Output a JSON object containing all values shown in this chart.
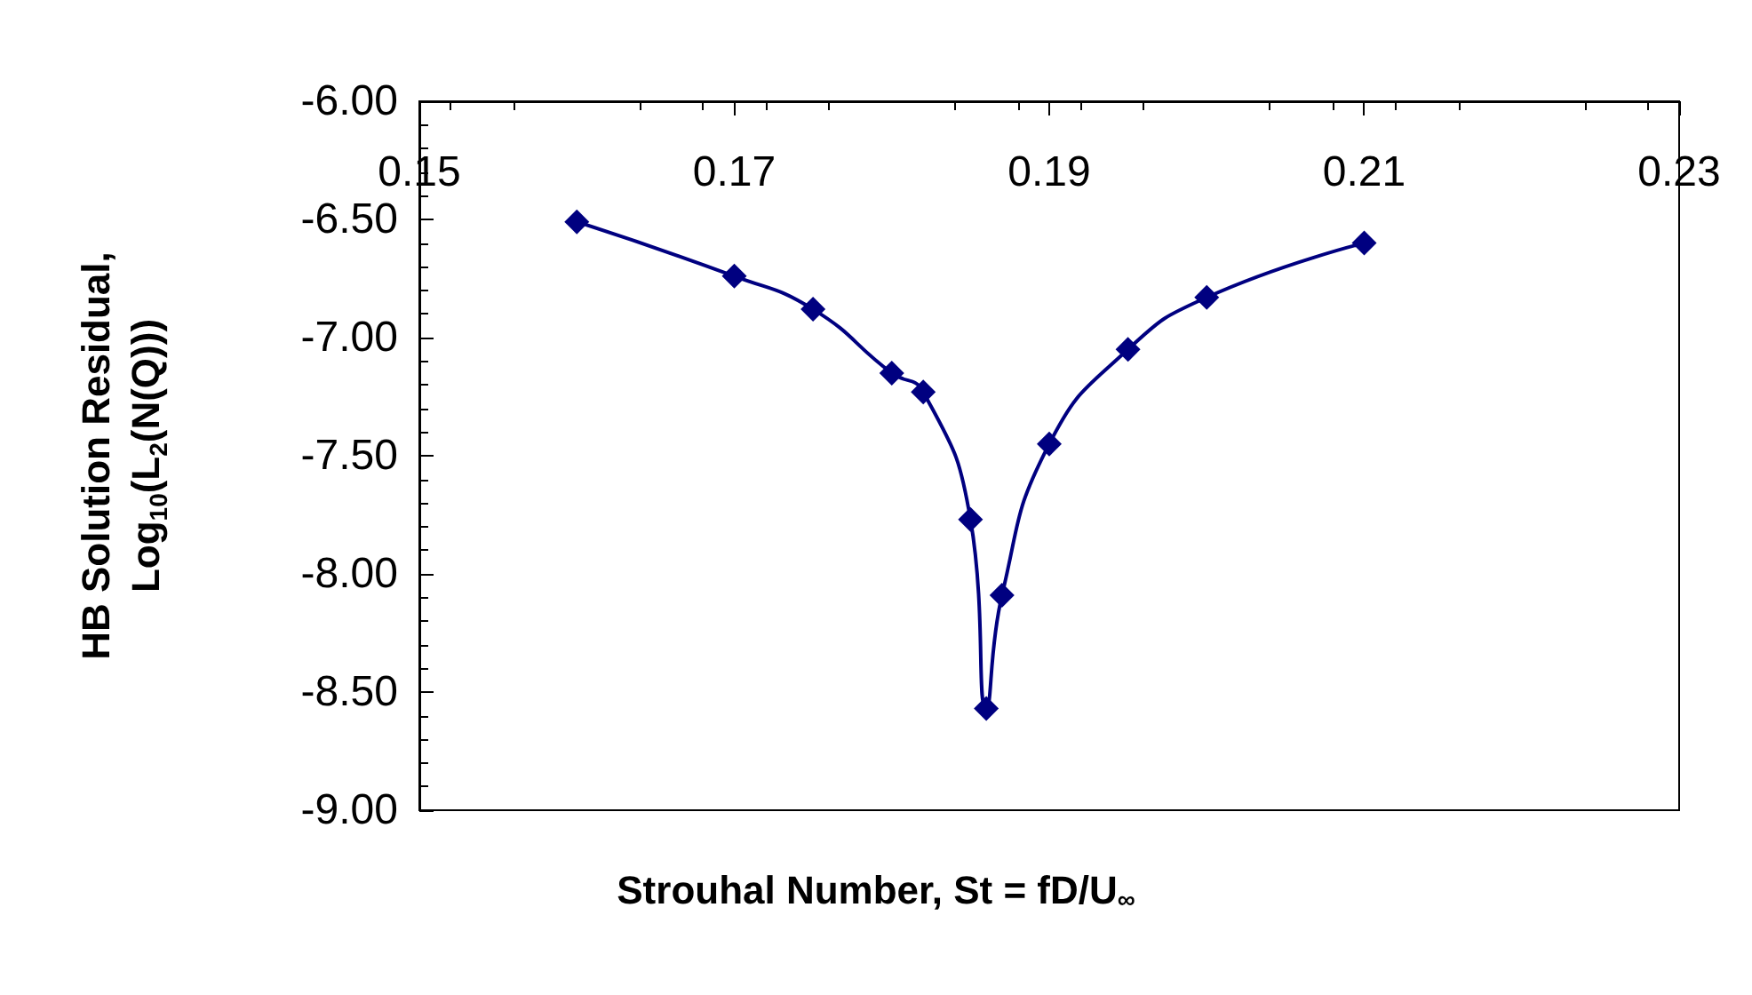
{
  "chart_data": {
    "type": "line",
    "xlabel": "Strouhal Number, St = fD/U$_{∞}$",
    "ylabel": "HB Solution Residual,\nLog$_{10}$(L$_{2}$(N(Q)))",
    "x": [
      0.16,
      0.17,
      0.175,
      0.18,
      0.182,
      0.185,
      0.186,
      0.187,
      0.19,
      0.195,
      0.2,
      0.21
    ],
    "series": [
      {
        "color": "#000080",
        "values": [
          -6.51,
          -6.74,
          -6.88,
          -7.15,
          -7.23,
          -7.77,
          -8.57,
          -8.09,
          -7.45,
          -7.05,
          -6.83,
          -6.6
        ]
      }
    ],
    "xlim": [
      0.15,
      0.23
    ],
    "xticks": [
      0.15,
      0.17,
      0.19,
      0.21,
      0.23
    ],
    "ylim": [
      -9,
      -6
    ],
    "yticks": [
      {
        "value": -9,
        "label": "-9.00"
      },
      {
        "value": -8.5,
        "label": "-8.50"
      },
      {
        "value": -8,
        "label": "-8.00"
      },
      {
        "value": -7.5,
        "label": "-7.50"
      },
      {
        "value": -7,
        "label": "-7.00"
      },
      {
        "value": -6.5,
        "label": "-6.50"
      },
      {
        "value": -6,
        "label": "-6.00"
      }
    ],
    "grid": false,
    "marker": "diamond",
    "line_style": "solid"
  }
}
